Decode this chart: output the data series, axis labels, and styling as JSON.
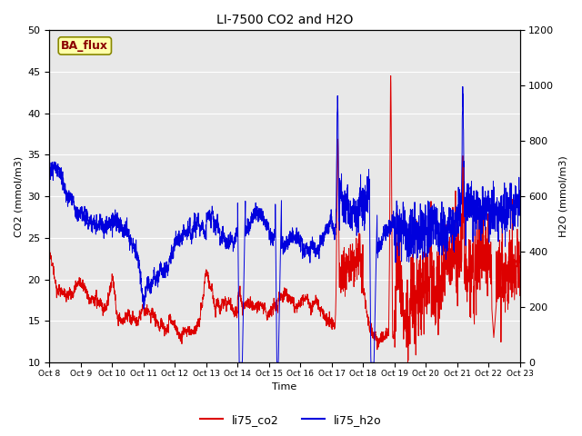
{
  "title": "LI-7500 CO2 and H2O",
  "xlabel": "Time",
  "ylabel_left": "CO2 (mmol/m3)",
  "ylabel_right": "H2O (mmol/m3)",
  "ylim_left": [
    10,
    50
  ],
  "ylim_right": [
    0,
    1200
  ],
  "xtick_labels": [
    "Oct 8",
    "Oct 9",
    "Oct 10",
    "Oct 11",
    "Oct 12",
    "Oct 13",
    "Oct 14",
    "Oct 15",
    "Oct 16",
    "Oct 17",
    "Oct 18",
    "Oct 19",
    "Oct 20",
    "Oct 21",
    "Oct 22",
    "Oct 23"
  ],
  "legend_entries": [
    "li75_co2",
    "li75_h2o"
  ],
  "line_color_co2": "#dd0000",
  "line_color_h2o": "#0000dd",
  "annotation_text": "BA_flux",
  "annotation_bg": "#ffffaa",
  "annotation_border": "#888800",
  "plot_bg": "#e8e8e8",
  "grid_color": "#ffffff",
  "n_days": 15
}
